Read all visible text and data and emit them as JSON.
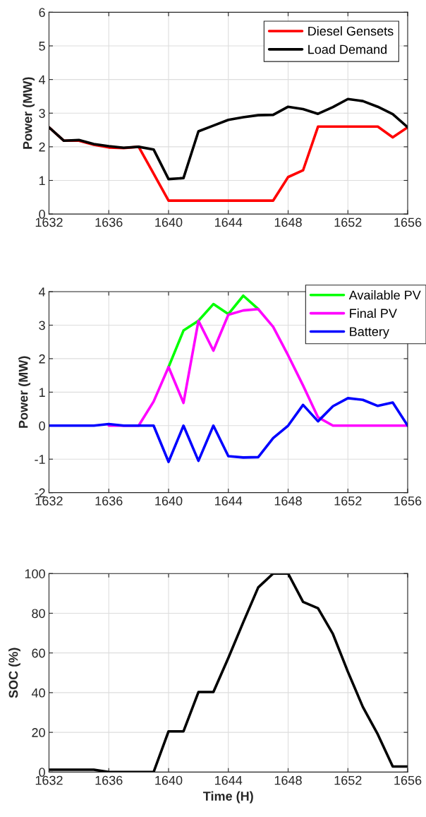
{
  "chart_data": [
    {
      "type": "line",
      "ylabel": "Power (MW)",
      "x": [
        1632,
        1633,
        1634,
        1635,
        1636,
        1637,
        1638,
        1639,
        1640,
        1641,
        1642,
        1643,
        1644,
        1645,
        1646,
        1647,
        1648,
        1649,
        1650,
        1651,
        1652,
        1653,
        1654,
        1655,
        1656
      ],
      "xlim": [
        1632,
        1656
      ],
      "xticks": [
        1632,
        1636,
        1640,
        1644,
        1648,
        1652,
        1656
      ],
      "ylim": [
        0,
        6
      ],
      "yticks": [
        0,
        1,
        2,
        3,
        4,
        5,
        6
      ],
      "grid": true,
      "legend": "top right",
      "series": [
        {
          "name": "Diesel Gensets",
          "color": "#ff0000",
          "values": [
            2.58,
            2.18,
            2.18,
            2.06,
            1.98,
            1.96,
            2.0,
            1.2,
            0.4,
            0.4,
            0.4,
            0.4,
            0.4,
            0.4,
            0.4,
            0.4,
            1.1,
            1.3,
            2.6,
            2.6,
            2.6,
            2.6,
            2.6,
            2.28,
            2.58
          ]
        },
        {
          "name": "Load Demand",
          "color": "#000000",
          "values": [
            2.58,
            2.18,
            2.2,
            2.08,
            2.02,
            1.97,
            2.0,
            1.92,
            1.04,
            1.07,
            2.46,
            2.63,
            2.8,
            2.88,
            2.94,
            2.95,
            3.19,
            3.12,
            2.98,
            3.18,
            3.42,
            3.36,
            3.19,
            2.97,
            2.58
          ]
        }
      ]
    },
    {
      "type": "line",
      "ylabel": "Power (MW)",
      "x": [
        1632,
        1633,
        1634,
        1635,
        1636,
        1637,
        1638,
        1639,
        1640,
        1641,
        1642,
        1643,
        1644,
        1645,
        1646,
        1647,
        1648,
        1649,
        1650,
        1651,
        1652,
        1653,
        1654,
        1655,
        1656
      ],
      "xlim": [
        1632,
        1656
      ],
      "xticks": [
        1632,
        1636,
        1640,
        1644,
        1648,
        1652,
        1656
      ],
      "ylim": [
        -2,
        4
      ],
      "yticks": [
        -2,
        -1,
        0,
        1,
        2,
        3,
        4
      ],
      "grid": true,
      "legend": "top right",
      "series": [
        {
          "name": "Available PV",
          "color": "#00ff00",
          "values": [
            null,
            null,
            null,
            null,
            null,
            null,
            null,
            null,
            1.75,
            2.84,
            3.13,
            3.63,
            3.33,
            3.88,
            3.48,
            null,
            null,
            null,
            null,
            null,
            null,
            null,
            null,
            null,
            null
          ]
        },
        {
          "name": "Final PV",
          "color": "#ff00ff",
          "values": [
            null,
            null,
            null,
            null,
            0,
            0,
            0,
            0.72,
            1.75,
            0.68,
            3.13,
            2.24,
            3.31,
            3.44,
            3.48,
            2.95,
            2.1,
            1.2,
            0.25,
            0,
            0,
            0,
            0,
            0,
            0
          ]
        },
        {
          "name": "Battery",
          "color": "#0000ff",
          "values": [
            0,
            0,
            0,
            0,
            0.05,
            0,
            0,
            0,
            -1.08,
            0,
            -1.05,
            0,
            -0.91,
            -0.95,
            -0.94,
            -0.37,
            0,
            0.62,
            0.13,
            0.58,
            0.82,
            0.77,
            0.59,
            0.69,
            0
          ]
        }
      ]
    },
    {
      "type": "line",
      "xlabel": "Time (H)",
      "ylabel": "SOC (%)",
      "x": [
        1632,
        1633,
        1634,
        1635,
        1636,
        1637,
        1638,
        1639,
        1640,
        1641,
        1642,
        1643,
        1644,
        1645,
        1646,
        1647,
        1648,
        1649,
        1650,
        1651,
        1652,
        1653,
        1654,
        1655,
        1656
      ],
      "xlim": [
        1632,
        1656
      ],
      "xticks": [
        1632,
        1636,
        1640,
        1644,
        1648,
        1652,
        1656
      ],
      "ylim": [
        0,
        100
      ],
      "yticks": [
        0,
        20,
        40,
        60,
        80,
        100
      ],
      "grid": true,
      "series": [
        {
          "color": "#000000",
          "values": [
            1.2,
            1.2,
            1.2,
            1.2,
            0,
            0,
            0,
            0,
            20.5,
            20.5,
            40.3,
            40.3,
            57.5,
            75.5,
            93,
            100,
            100,
            85.7,
            82.5,
            69.5,
            50.5,
            32.8,
            19,
            2.8,
            2.8
          ]
        }
      ]
    }
  ]
}
